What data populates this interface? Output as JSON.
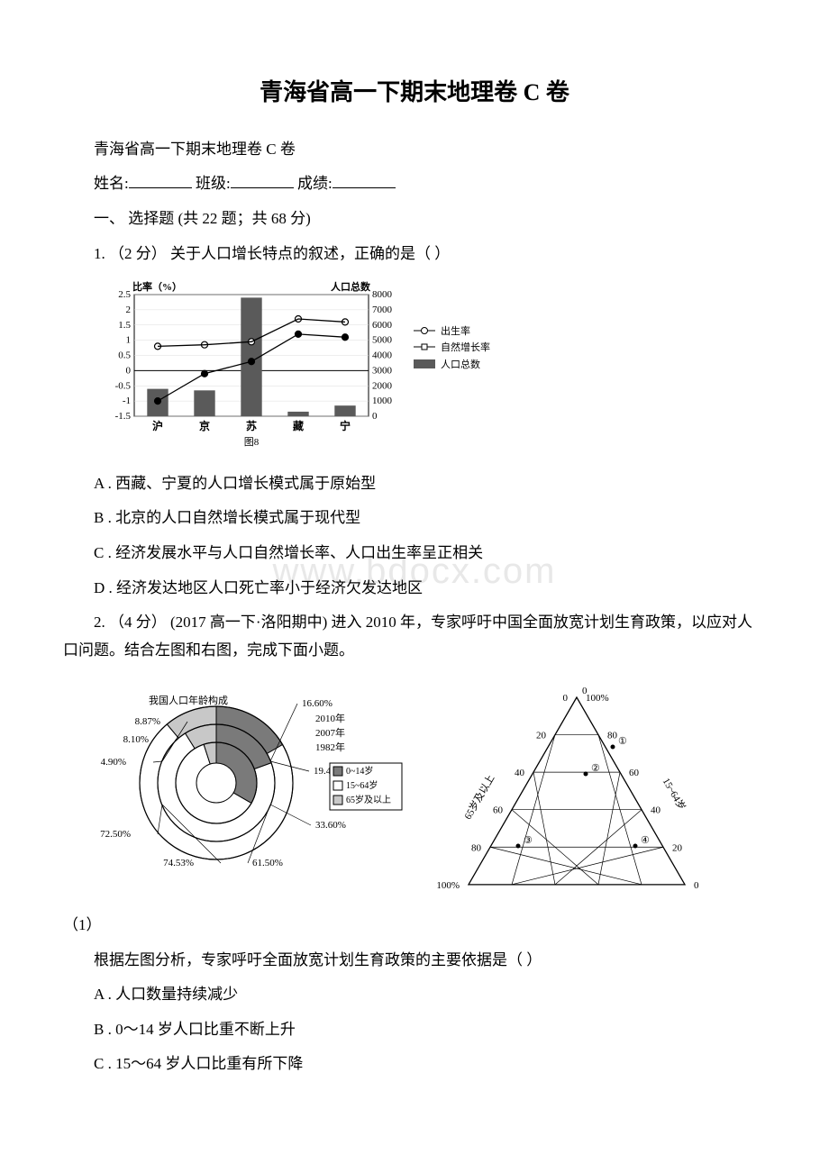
{
  "title": "青海省高一下期末地理卷 C 卷",
  "subtitle": "青海省高一下期末地理卷 C 卷",
  "formLine": {
    "nameLabel": "姓名:",
    "classLabel": "班级:",
    "scoreLabel": "成绩:"
  },
  "section1": "一、 选择题 (共 22 题；共 68 分)",
  "q1": {
    "stem": "1. （2 分） 关于人口增长特点的叙述，正确的是（ ）",
    "optA": "A . 西藏、宁夏的人口增长模式属于原始型",
    "optB": "B . 北京的人口自然增长模式属于现代型",
    "optC": "C . 经济发展水平与人口自然增长率、人口出生率呈正相关",
    "optD": "D . 经济发达地区人口死亡率小于经济欠发达地区"
  },
  "q2": {
    "stem": "2. （4 分） (2017 高一下·洛阳期中) 进入 2010 年，专家呼吁中国全面放宽计划生育政策，以应对人口问题。结合左图和右图，完成下面小题。",
    "sub1": "（1）",
    "sub1stem": "根据左图分析，专家呼吁全面放宽计划生育政策的主要依据是（ ）",
    "optA": "A . 人口数量持续减少",
    "optB": "B . 0～14 岁人口比重不断上升",
    "optC": "C . 15～64 岁人口比重有所下降"
  },
  "chart1": {
    "type": "bar-line-combo",
    "title_left": "比率（%）",
    "title_right": "人口总数",
    "caption": "图8",
    "categories": [
      "沪",
      "京",
      "苏",
      "藏",
      "宁"
    ],
    "left_ticks": [
      "2.5",
      "2",
      "1.5",
      "1",
      "0.5",
      "0",
      "-0.5",
      "-1",
      "-1.5"
    ],
    "right_ticks": [
      "8000",
      "7000",
      "6000",
      "5000",
      "4000",
      "3000",
      "2000",
      "1000",
      "0"
    ],
    "bar_values": [
      1800,
      1700,
      7800,
      300,
      700
    ],
    "birth_rate": [
      0.8,
      0.85,
      0.95,
      1.7,
      1.6
    ],
    "natural_rate": [
      -1.0,
      -0.1,
      0.3,
      1.2,
      1.1
    ],
    "legend": {
      "birth": "出生率",
      "natural": "自然增长率",
      "pop": "人口总数"
    },
    "colors": {
      "bar": "#5a5a5a",
      "line": "#000000",
      "bg": "#ffffff",
      "grid": "#dddddd"
    },
    "font_size": 11
  },
  "chart2_left": {
    "type": "concentric-pie",
    "title": "我国人口年龄构成",
    "years": [
      "2010年",
      "2007年",
      "1982年"
    ],
    "outer_labels": [
      "16.60%",
      "8.87%",
      "8.10%",
      "4.90%",
      "72.50%",
      "74.53%",
      "61.50%",
      "33.60%",
      "19.40%"
    ],
    "legend": [
      "0~14岁",
      "15~64岁",
      "65岁及以上"
    ],
    "colors": {
      "stroke": "#000000",
      "fill_dark": "#7a7a7a",
      "fill_mid": "#c8c8c8",
      "fill_light": "#ffffff"
    },
    "font_size": 11
  },
  "chart2_right": {
    "type": "ternary",
    "axis_labels": [
      "65岁及以上",
      "15~64岁",
      "0-14岁"
    ],
    "ticks": [
      "0",
      "20",
      "40",
      "60",
      "80",
      "100%"
    ],
    "points": [
      "①",
      "②",
      "③",
      "④"
    ],
    "colors": {
      "stroke": "#000000"
    },
    "font_size": 11
  },
  "watermark_text": "www.bdocx.com"
}
